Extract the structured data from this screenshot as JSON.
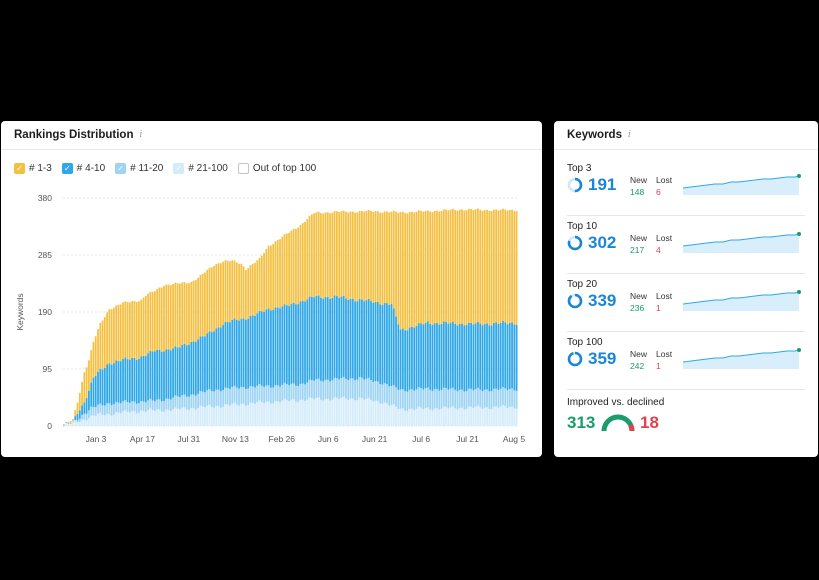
{
  "rankings": {
    "title": "Rankings Distribution",
    "info_icon": "info-icon",
    "legend": [
      {
        "label": "# 1-3",
        "color": "#f5c042",
        "checked": true
      },
      {
        "label": "# 4-10",
        "color": "#2fa7e8",
        "checked": true
      },
      {
        "label": "# 11-20",
        "color": "#9dd3f5",
        "checked": true
      },
      {
        "label": "# 21-100",
        "color": "#d3ebfb",
        "checked": true
      },
      {
        "label": "Out of top 100",
        "color": "#ffffff",
        "checked": false
      }
    ]
  },
  "chart_data": {
    "type": "bar",
    "stacked": true,
    "title": "Rankings Distribution",
    "ylabel": "Keywords",
    "ylim": [
      0,
      380
    ],
    "yticks": [
      0,
      95,
      190,
      285,
      380
    ],
    "xtick_labels": [
      "Jan 3",
      "Apr 17",
      "Jul 31",
      "Nov 13",
      "Feb 26",
      "Jun 6",
      "Jun 21",
      "Jul 6",
      "Jul 21",
      "Aug 5"
    ],
    "series_order": [
      "# 21-100",
      "# 11-20",
      "# 4-10",
      "# 1-3"
    ],
    "profile": {
      "total": [
        [
          0,
          3
        ],
        [
          4,
          10
        ],
        [
          6,
          40
        ],
        [
          9,
          90
        ],
        [
          11,
          110
        ],
        [
          13,
          140
        ],
        [
          16,
          170
        ],
        [
          20,
          195
        ],
        [
          26,
          205
        ],
        [
          34,
          210
        ],
        [
          36,
          218
        ],
        [
          40,
          225
        ],
        [
          44,
          235
        ],
        [
          52,
          238
        ],
        [
          56,
          240
        ],
        [
          60,
          250
        ],
        [
          66,
          268
        ],
        [
          70,
          275
        ],
        [
          74,
          275
        ],
        [
          78,
          270
        ],
        [
          80,
          262
        ],
        [
          86,
          278
        ],
        [
          90,
          300
        ],
        [
          96,
          315
        ],
        [
          104,
          335
        ],
        [
          110,
          355
        ],
        [
          120,
          357
        ],
        [
          136,
          358
        ],
        [
          148,
          356
        ],
        [
          160,
          358
        ],
        [
          175,
          361
        ],
        [
          185,
          360
        ],
        [
          200,
          360
        ]
      ],
      "top10": [
        [
          0,
          2
        ],
        [
          4,
          6
        ],
        [
          6,
          22
        ],
        [
          9,
          40
        ],
        [
          11,
          60
        ],
        [
          13,
          80
        ],
        [
          16,
          92
        ],
        [
          20,
          105
        ],
        [
          26,
          110
        ],
        [
          34,
          115
        ],
        [
          40,
          125
        ],
        [
          50,
          130
        ],
        [
          56,
          140
        ],
        [
          62,
          150
        ],
        [
          70,
          170
        ],
        [
          74,
          175
        ],
        [
          80,
          180
        ],
        [
          84,
          185
        ],
        [
          90,
          195
        ],
        [
          98,
          200
        ],
        [
          110,
          215
        ],
        [
          120,
          215
        ],
        [
          130,
          210
        ],
        [
          144,
          203
        ],
        [
          148,
          160
        ],
        [
          160,
          172
        ],
        [
          180,
          170
        ],
        [
          200,
          172
        ]
      ],
      "top20": [
        [
          0,
          1
        ],
        [
          4,
          4
        ],
        [
          8,
          18
        ],
        [
          12,
          30
        ],
        [
          20,
          38
        ],
        [
          30,
          40
        ],
        [
          40,
          42
        ],
        [
          56,
          52
        ],
        [
          66,
          60
        ],
        [
          76,
          64
        ],
        [
          86,
          66
        ],
        [
          96,
          68
        ],
        [
          104,
          70
        ],
        [
          110,
          76
        ],
        [
          130,
          80
        ],
        [
          140,
          72
        ],
        [
          148,
          60
        ],
        [
          160,
          62
        ],
        [
          180,
          60
        ],
        [
          200,
          62
        ]
      ],
      "top100": [
        [
          0,
          1
        ],
        [
          8,
          10
        ],
        [
          14,
          18
        ],
        [
          30,
          24
        ],
        [
          50,
          28
        ],
        [
          70,
          34
        ],
        [
          90,
          40
        ],
        [
          110,
          45
        ],
        [
          130,
          46
        ],
        [
          140,
          40
        ],
        [
          148,
          28
        ],
        [
          170,
          30
        ],
        [
          200,
          32
        ]
      ]
    }
  },
  "keywords": {
    "title": "Keywords",
    "info_icon": "info-icon",
    "new_label": "New",
    "lost_label": "Lost",
    "rows": [
      {
        "label": "Top 3",
        "value": "191",
        "new": "148",
        "lost": "6",
        "ring_fill": 0.5
      },
      {
        "label": "Top 10",
        "value": "302",
        "new": "217",
        "lost": "4",
        "ring_fill": 0.8
      },
      {
        "label": "Top 20",
        "value": "339",
        "new": "236",
        "lost": "1",
        "ring_fill": 0.9
      },
      {
        "label": "Top 100",
        "value": "359",
        "new": "242",
        "lost": "1",
        "ring_fill": 0.95
      }
    ],
    "improved": {
      "label": "Improved vs. declined",
      "improved": "313",
      "declined": "18"
    }
  },
  "colors": {
    "accent": "#1a86d6",
    "green": "#1a9c6b",
    "red": "#e0424f",
    "gold": "#f5c042",
    "blue": "#2fa7e8"
  }
}
